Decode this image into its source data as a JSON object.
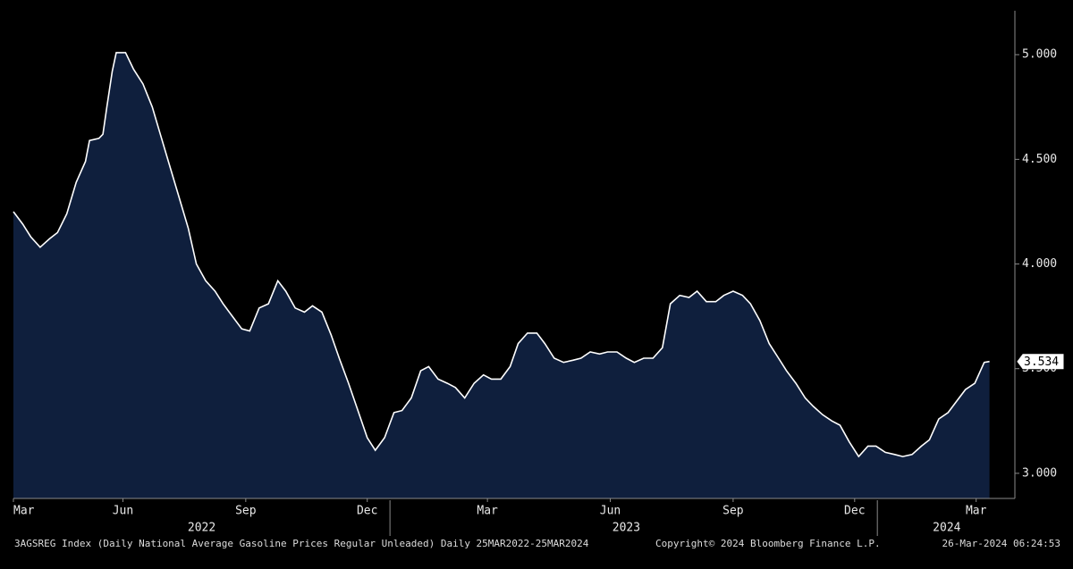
{
  "chart_data": {
    "type": "area",
    "x": [
      0,
      7,
      13,
      20,
      27,
      33,
      40,
      47,
      54,
      57,
      64,
      67,
      70,
      74,
      77,
      84,
      90,
      97,
      104,
      110,
      117,
      124,
      131,
      137,
      144,
      151,
      157,
      164,
      171,
      177,
      184,
      191,
      198,
      204,
      211,
      218,
      224,
      231,
      238,
      244,
      251,
      258,
      265,
      271,
      278,
      285,
      291,
      298,
      305,
      311,
      318,
      325,
      331,
      338,
      345,
      352,
      358,
      365,
      372,
      378,
      385,
      392,
      398,
      405,
      412,
      419,
      425,
      432,
      439,
      445,
      452,
      459,
      465,
      472,
      479,
      486,
      492,
      499,
      506,
      512,
      519,
      526,
      532,
      539,
      546,
      552,
      559,
      566,
      573,
      579,
      586,
      593,
      599,
      606,
      613,
      619,
      626,
      633,
      640,
      646,
      653,
      660,
      666,
      673,
      680,
      686,
      693,
      700,
      707,
      713,
      720,
      727,
      731
    ],
    "values": [
      4.25,
      4.19,
      4.13,
      4.08,
      4.12,
      4.15,
      4.24,
      4.39,
      4.49,
      4.59,
      4.6,
      4.62,
      4.75,
      4.92,
      5.01,
      5.01,
      4.93,
      4.86,
      4.75,
      4.62,
      4.47,
      4.32,
      4.17,
      4.0,
      3.92,
      3.87,
      3.81,
      3.75,
      3.69,
      3.68,
      3.79,
      3.81,
      3.92,
      3.87,
      3.79,
      3.77,
      3.8,
      3.77,
      3.66,
      3.55,
      3.43,
      3.3,
      3.17,
      3.11,
      3.17,
      3.29,
      3.3,
      3.36,
      3.49,
      3.51,
      3.45,
      3.43,
      3.41,
      3.36,
      3.43,
      3.47,
      3.45,
      3.45,
      3.51,
      3.62,
      3.67,
      3.67,
      3.62,
      3.55,
      3.53,
      3.54,
      3.55,
      3.58,
      3.57,
      3.58,
      3.58,
      3.55,
      3.53,
      3.55,
      3.55,
      3.6,
      3.81,
      3.85,
      3.84,
      3.87,
      3.82,
      3.82,
      3.85,
      3.87,
      3.85,
      3.81,
      3.73,
      3.62,
      3.55,
      3.49,
      3.43,
      3.36,
      3.32,
      3.28,
      3.25,
      3.23,
      3.15,
      3.08,
      3.13,
      3.13,
      3.1,
      3.09,
      3.08,
      3.09,
      3.13,
      3.16,
      3.26,
      3.29,
      3.35,
      3.4,
      3.43,
      3.53,
      3.534
    ],
    "line_color": "#ffffff",
    "fill_color": "#0f1f3d",
    "xlim": [
      0,
      750
    ],
    "xticks": [
      {
        "value": 0,
        "label": "Mar"
      },
      {
        "value": 82,
        "label": "Jun"
      },
      {
        "value": 174,
        "label": "Sep"
      },
      {
        "value": 265,
        "label": "Dec"
      },
      {
        "value": 355,
        "label": "Mar"
      },
      {
        "value": 447,
        "label": "Jun"
      },
      {
        "value": 539,
        "label": "Sep"
      },
      {
        "value": 630,
        "label": "Dec"
      },
      {
        "value": 721,
        "label": "Mar"
      }
    ],
    "year_labels": [
      {
        "value": 141,
        "label": "2022"
      },
      {
        "value": 459,
        "label": "2023"
      },
      {
        "value": 699,
        "label": "2024"
      }
    ],
    "year_breaks": [
      282,
      647
    ],
    "ylim": [
      2.88,
      5.21
    ],
    "yticks": [
      {
        "value": 3,
        "label": "3.000"
      },
      {
        "value": 3.5,
        "label": "3.500"
      },
      {
        "value": 4,
        "label": "4.000"
      },
      {
        "value": 4.5,
        "label": "4.500"
      },
      {
        "value": 5,
        "label": "5.000"
      }
    ],
    "footer": {
      "source": "3AGSREG Index (Daily National Average Gasoline Prices Regular Unleaded)  Daily 25MAR2022-25MAR2024",
      "copyright": "Copyright© 2024 Bloomberg Finance L.P.",
      "timestamp": "26-Mar-2024 06:24:53"
    }
  }
}
